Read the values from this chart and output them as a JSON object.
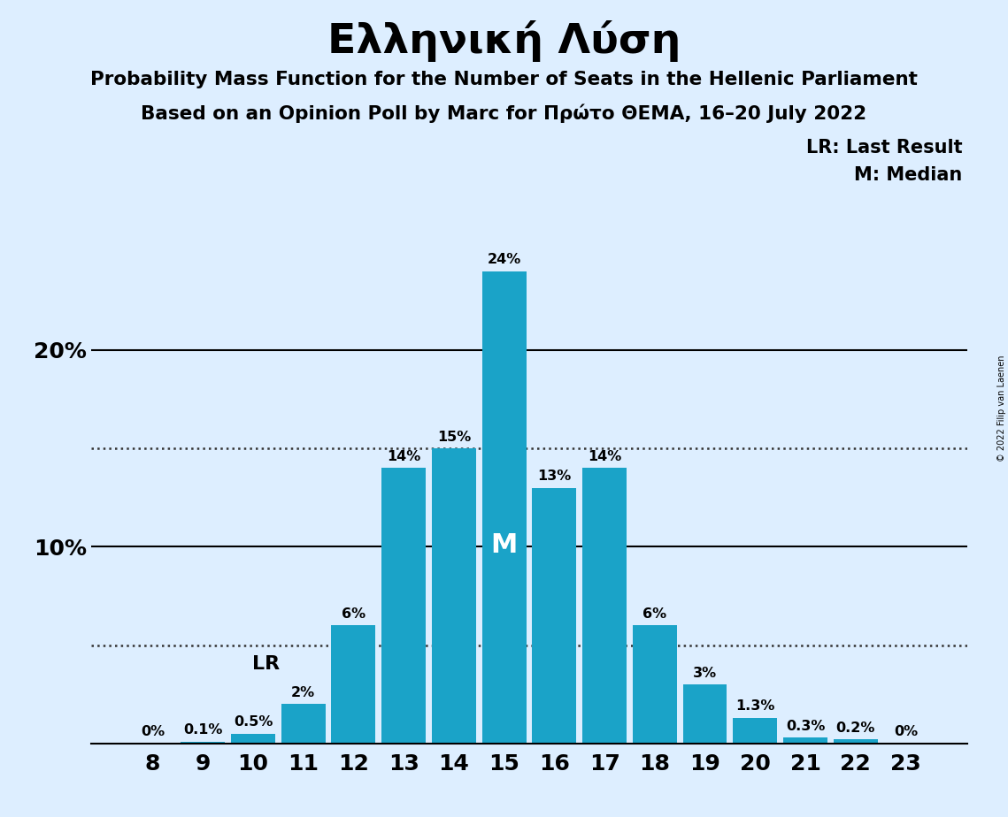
{
  "title": "Ελληνική Λύση",
  "subtitle1": "Probability Mass Function for the Number of Seats in the Hellenic Parliament",
  "subtitle2": "Based on an Opinion Poll by Marc for Πρώτο ΘΕΜΑ, 16–20 July 2022",
  "categories": [
    8,
    9,
    10,
    11,
    12,
    13,
    14,
    15,
    16,
    17,
    18,
    19,
    20,
    21,
    22,
    23
  ],
  "values": [
    0.0,
    0.1,
    0.5,
    2.0,
    6.0,
    14.0,
    15.0,
    24.0,
    13.0,
    14.0,
    6.0,
    3.0,
    1.3,
    0.3,
    0.2,
    0.0
  ],
  "labels": [
    "0%",
    "0.1%",
    "0.5%",
    "2%",
    "6%",
    "14%",
    "15%",
    "24%",
    "13%",
    "14%",
    "6%",
    "3%",
    "1.3%",
    "0.3%",
    "0.2%",
    "0%"
  ],
  "bar_color": "#1aA3C8",
  "background_color": "#ddeeff",
  "median_seat": 15,
  "lr_seat": 11,
  "dotted_line_1": 15.0,
  "dotted_line_2": 5.0,
  "ylim": [
    0,
    27
  ],
  "legend_lr": "LR: Last Result",
  "legend_m": "M: Median",
  "copyright": "© 2022 Filip van Laenen"
}
